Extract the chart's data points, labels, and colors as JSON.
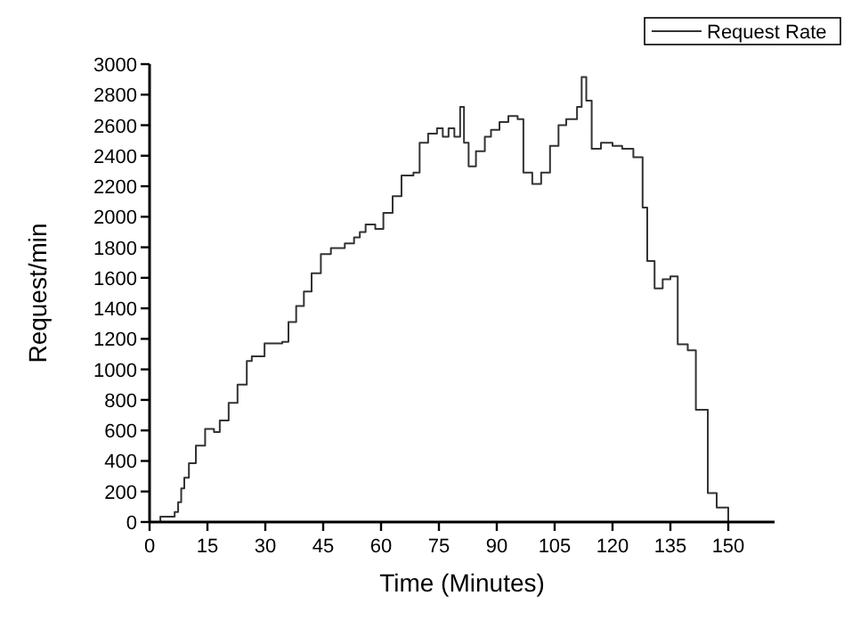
{
  "chart_data": {
    "type": "step",
    "xlabel": "Time (Minutes)",
    "ylabel": "Request/min",
    "xlim": [
      0,
      162
    ],
    "ylim": [
      0,
      3000
    ],
    "xticks": [
      0,
      15,
      30,
      45,
      60,
      75,
      90,
      105,
      120,
      135,
      150
    ],
    "yticks": [
      0,
      200,
      400,
      600,
      800,
      1000,
      1200,
      1400,
      1600,
      1800,
      2000,
      2200,
      2400,
      2600,
      2800,
      3000
    ],
    "legend": "top right",
    "grid": false,
    "line_style": "solid",
    "series": [
      {
        "name": "Request Rate",
        "color": "#333333",
        "x": [
          0,
          2.8,
          5,
          6.5,
          7.4,
          8.2,
          9,
          10.2,
          12,
          14.4,
          16.7,
          18.2,
          20.5,
          22.8,
          25.2,
          26.5,
          29.8,
          34.4,
          36,
          38,
          40,
          42,
          44.4,
          47,
          50.6,
          53,
          54.5,
          56,
          58.5,
          60.6,
          63,
          65.3,
          68.4,
          70,
          72.2,
          74.5,
          76,
          77.5,
          79,
          80.5,
          81.5,
          82.7,
          84.6,
          86.9,
          88.5,
          90.7,
          93,
          95.4,
          96.9,
          99.2,
          101.5,
          103.8,
          106,
          108,
          110.8,
          112,
          113.2,
          114.6,
          117,
          120,
          122.5,
          125.4,
          127.8,
          129,
          130.9,
          133,
          135,
          136.9,
          139.5,
          141.6,
          144.7,
          147,
          150
        ],
        "values": [
          0,
          35,
          35,
          66,
          130,
          220,
          290,
          385,
          500,
          610,
          590,
          665,
          780,
          900,
          1055,
          1085,
          1170,
          1180,
          1310,
          1415,
          1510,
          1630,
          1755,
          1795,
          1825,
          1865,
          1900,
          1950,
          1920,
          2025,
          2135,
          2270,
          2290,
          2485,
          2545,
          2580,
          2525,
          2580,
          2525,
          2720,
          2485,
          2330,
          2430,
          2525,
          2570,
          2620,
          2660,
          2640,
          2290,
          2215,
          2290,
          2465,
          2600,
          2640,
          2720,
          2915,
          2760,
          2445,
          2485,
          2465,
          2445,
          2390,
          2060,
          1710,
          1530,
          1590,
          1610,
          1165,
          1125,
          735,
          190,
          95,
          0
        ]
      }
    ]
  }
}
